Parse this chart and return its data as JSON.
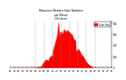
{
  "title": "Milwaukee Weather Solar Radiation per Minute (24 Hours)",
  "bar_color": "#ff0000",
  "background_color": "#ffffff",
  "grid_color": "#888888",
  "num_points": 1440,
  "peak_hour": 13.2,
  "ylim_max": 800,
  "legend_label": "Solar Rad",
  "legend_color": "#ff0000",
  "dashed_grid_hours": [
    6,
    8,
    10,
    12,
    14,
    16,
    18,
    20
  ],
  "ytick_right": [
    0,
    200,
    400,
    600,
    800
  ],
  "xtick_step_hours": 1
}
